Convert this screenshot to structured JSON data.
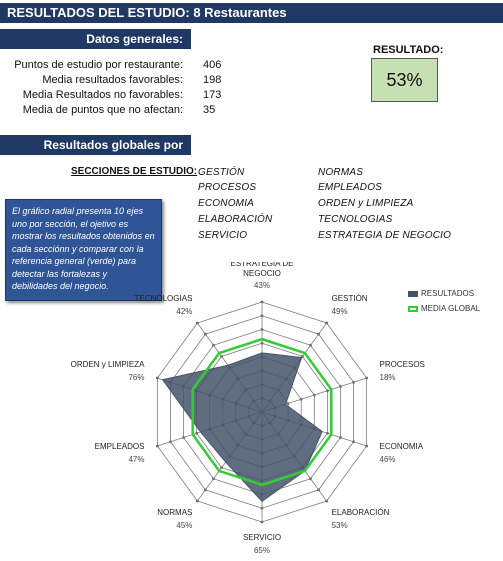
{
  "header": {
    "title": "RESULTADOS DEL ESTUDIO: 8 Restaurantes"
  },
  "general": {
    "heading": "Datos generales:",
    "rows": [
      {
        "label": "Puntos de estudio por restaurante:",
        "value": "406"
      },
      {
        "label": "Media resultados favorables:",
        "value": "198"
      },
      {
        "label": "Media Resultados no favorables:",
        "value": "173"
      },
      {
        "label": "Media de puntos que no afectan:",
        "value": "35"
      }
    ]
  },
  "result": {
    "label": "RESULTADO:",
    "value": "53%"
  },
  "global": {
    "heading": "Resultados globales por sección:",
    "sections_label": "SECCIONES DE ESTUDIO:",
    "sections": [
      "GESTIÓN",
      "NORMAS",
      "PROCESOS",
      "EMPLEADOS",
      "ECONOMIA",
      "ORDEN y LIMPIEZA",
      "ELABORACIÓN",
      "TECNOLOGIAS",
      "SERVICIO",
      "ESTRATEGIA DE NEGOCIO"
    ]
  },
  "info_text": "El gráfico radial presenta 10 ejes uno por sección, el ojetivo es mostrar los resultados obtenidos en cada secciónn y comparar con la referencia general (verde) para detectar las fortalezas y debilidades del negocio.",
  "chart_data": {
    "type": "radar",
    "categories": [
      "ESTRATEGIA DE NEGOCIO",
      "GESTIÓN",
      "PROCESOS",
      "ECONOMIA",
      "ELABORACIÓN",
      "SERVICIO",
      "NORMAS",
      "EMPLEADOS",
      "ORDEN y LIMPIEZA",
      "TECNOLOGIAS"
    ],
    "category_values_label": [
      "43%",
      "49%",
      "18%",
      "46%",
      "53%",
      "65%",
      "45%",
      "47%",
      "76%",
      "42%"
    ],
    "series": [
      {
        "name": "RESULTADOS",
        "values": [
          43,
          49,
          18,
          46,
          53,
          65,
          45,
          47,
          76,
          42
        ],
        "color": "#44546a"
      },
      {
        "name": "MEDIA GLOBAL",
        "values": [
          53,
          53,
          53,
          53,
          53,
          53,
          53,
          53,
          53,
          53
        ],
        "color": "#33cc33"
      }
    ],
    "rlim": [
      0,
      80
    ],
    "grid": true,
    "legend": "top-right"
  }
}
